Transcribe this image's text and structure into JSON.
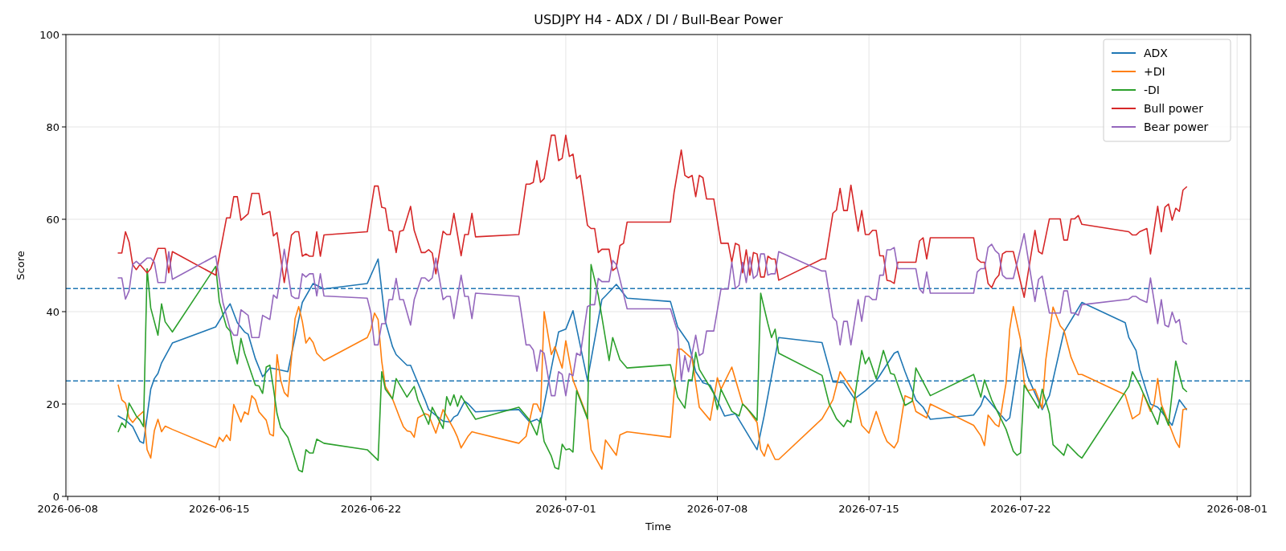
{
  "chart_data": {
    "type": "line",
    "title": "USDJPY H4 - ADX / DI / Bull-Bear Power",
    "xlabel": "Time",
    "ylabel": "Score",
    "xlim": [
      "2026-06-07T22:00",
      "2026-08-01T15:00"
    ],
    "ylim": [
      0,
      100
    ],
    "xticks": [
      "2026-06-08",
      "2026-06-15",
      "2026-06-22",
      "2026-07-01",
      "2026-07-08",
      "2026-07-15",
      "2026-07-22",
      "2026-08-01"
    ],
    "yticks": [
      0,
      20,
      40,
      60,
      80,
      100
    ],
    "grid": true,
    "legend": "top right",
    "line_style": "solid",
    "marker": "none",
    "ref_lines": [
      {
        "axis": "y",
        "value": 45,
        "color": "#1f77b4",
        "line_style": "dashed"
      },
      {
        "axis": "y",
        "value": 25,
        "color": "#1f77b4",
        "line_style": "dashed"
      }
    ],
    "series": [
      {
        "name": "ADX",
        "color": "#1f77b4",
        "x": [
          "2026-06-10T08:00",
          "2026-06-10T16:00",
          "2026-06-11T00:00",
          "2026-06-11T08:00",
          "2026-06-11T12:00",
          "2026-06-11T20:00",
          "2026-06-12T00:00",
          "2026-06-12T04:00",
          "2026-06-12T08:00",
          "2026-06-12T20:00",
          "2026-06-14T20:00",
          "2026-06-15T08:00",
          "2026-06-15T12:00",
          "2026-06-15T20:00",
          "2026-06-16T04:00",
          "2026-06-16T08:00",
          "2026-06-16T16:00",
          "2026-06-17T00:00",
          "2026-06-17T08:00",
          "2026-06-17T12:00",
          "2026-06-18T04:00",
          "2026-06-18T20:00",
          "2026-06-19T08:00",
          "2026-06-19T20:00",
          "2026-06-21T20:00",
          "2026-06-22T08:00",
          "2026-06-22T16:00",
          "2026-06-23T00:00",
          "2026-06-23T04:00",
          "2026-06-23T16:00",
          "2026-06-23T20:00",
          "2026-06-24T04:00",
          "2026-06-24T12:00",
          "2026-06-24T16:00",
          "2026-06-25T08:00",
          "2026-06-25T16:00",
          "2026-06-25T20:00",
          "2026-06-26T00:00",
          "2026-06-26T08:00",
          "2026-06-26T12:00",
          "2026-06-26T20:00",
          "2026-06-28T20:00",
          "2026-06-29T08:00",
          "2026-06-29T16:00",
          "2026-06-29T20:00",
          "2026-06-30T16:00",
          "2026-07-01T00:00",
          "2026-07-01T08:00",
          "2026-07-02T00:00",
          "2026-07-02T16:00",
          "2026-07-02T20:00",
          "2026-07-03T08:00",
          "2026-07-03T20:00",
          "2026-07-05T20:00",
          "2026-07-06T04:00",
          "2026-07-06T16:00",
          "2026-07-07T00:00",
          "2026-07-07T08:00",
          "2026-07-07T16:00",
          "2026-07-08T08:00",
          "2026-07-08T20:00",
          "2026-07-09T20:00",
          "2026-07-10T04:00",
          "2026-07-10T20:00",
          "2026-07-12T20:00",
          "2026-07-13T08:00",
          "2026-07-13T20:00",
          "2026-07-14T08:00",
          "2026-07-14T20:00",
          "2026-07-15T08:00",
          "2026-07-16T04:00",
          "2026-07-16T08:00",
          "2026-07-16T16:00",
          "2026-07-17T04:00",
          "2026-07-17T12:00",
          "2026-07-17T20:00",
          "2026-07-19T20:00",
          "2026-07-20T04:00",
          "2026-07-20T08:00",
          "2026-07-21T08:00",
          "2026-07-21T12:00",
          "2026-07-22T00:00",
          "2026-07-22T08:00",
          "2026-07-23T00:00",
          "2026-07-23T08:00",
          "2026-07-24T00:00",
          "2026-07-24T20:00",
          "2026-07-26T20:00",
          "2026-07-27T00:00",
          "2026-07-27T08:00",
          "2026-07-27T12:00",
          "2026-07-28T00:00",
          "2026-07-28T08:00",
          "2026-07-28T12:00",
          "2026-07-29T00:00",
          "2026-07-29T08:00",
          "2026-07-29T16:00"
        ],
        "values": [
          17.4,
          16.5,
          15.1,
          11.9,
          11.5,
          23.2,
          25.5,
          26.6,
          28.9,
          33.2,
          36.7,
          40.6,
          41.7,
          37.6,
          35.6,
          35.1,
          29.8,
          25.9,
          27.8,
          27.7,
          27,
          42,
          46.1,
          44.9,
          46.1,
          51.4,
          37.9,
          32.4,
          30.7,
          28.4,
          28.4,
          24.6,
          20.9,
          18.8,
          16.3,
          16.1,
          17.2,
          17.6,
          20.6,
          20,
          18.3,
          18.8,
          16.1,
          16.7,
          16,
          35.6,
          36.2,
          40.2,
          25.2,
          42.6,
          43.4,
          45.9,
          42.9,
          42.2,
          36.7,
          33.3,
          27,
          24.6,
          24.1,
          17.4,
          17.9,
          10.1,
          17.6,
          34.4,
          33.3,
          24.8,
          24.6,
          21.1,
          22.9,
          25,
          31,
          31.4,
          27,
          20.9,
          19.3,
          16.7,
          17.6,
          19.7,
          21.8,
          16.3,
          17,
          32.3,
          25.9,
          18.8,
          21.8,
          35.6,
          42,
          37.6,
          34.4,
          31.6,
          27.5,
          20,
          19.3,
          18.4,
          15.4,
          20.9,
          18.8
        ]
      },
      {
        "name": "+DI",
        "color": "#ff7f0e",
        "x": [
          "2026-06-10T08:00",
          "2026-06-10T12:00",
          "2026-06-10T16:00",
          "2026-06-10T20:00",
          "2026-06-11T00:00",
          "2026-06-11T04:00",
          "2026-06-11T08:00",
          "2026-06-11T12:00",
          "2026-06-11T16:00",
          "2026-06-11T20:00",
          "2026-06-12T00:00",
          "2026-06-12T04:00",
          "2026-06-12T08:00",
          "2026-06-12T12:00",
          "2026-06-12T20:00",
          "2026-06-14T20:00",
          "2026-06-15T00:00",
          "2026-06-15T04:00",
          "2026-06-15T08:00",
          "2026-06-15T12:00",
          "2026-06-15T16:00",
          "2026-06-16T00:00",
          "2026-06-16T04:00",
          "2026-06-16T08:00",
          "2026-06-16T12:00",
          "2026-06-16T16:00",
          "2026-06-16T20:00",
          "2026-06-17T04:00",
          "2026-06-17T08:00",
          "2026-06-17T12:00",
          "2026-06-17T16:00",
          "2026-06-17T20:00",
          "2026-06-18T00:00",
          "2026-06-18T04:00",
          "2026-06-18T12:00",
          "2026-06-18T16:00",
          "2026-06-18T20:00",
          "2026-06-19T00:00",
          "2026-06-19T04:00",
          "2026-06-19T08:00",
          "2026-06-19T12:00",
          "2026-06-19T20:00",
          "2026-06-21T20:00",
          "2026-06-22T00:00",
          "2026-06-22T04:00",
          "2026-06-22T08:00",
          "2026-06-22T12:00",
          "2026-06-22T16:00",
          "2026-06-23T00:00",
          "2026-06-23T08:00",
          "2026-06-23T12:00",
          "2026-06-23T16:00",
          "2026-06-23T20:00",
          "2026-06-24T00:00",
          "2026-06-24T04:00",
          "2026-06-24T12:00",
          "2026-06-24T16:00",
          "2026-06-25T00:00",
          "2026-06-25T08:00",
          "2026-06-25T20:00",
          "2026-06-26T00:00",
          "2026-06-26T04:00",
          "2026-06-26T12:00",
          "2026-06-26T16:00",
          "2026-06-26T20:00",
          "2026-06-28T20:00",
          "2026-06-29T04:00",
          "2026-06-29T12:00",
          "2026-06-29T16:00",
          "2026-06-29T20:00",
          "2026-06-30T00:00",
          "2026-06-30T08:00",
          "2026-06-30T12:00",
          "2026-06-30T20:00",
          "2026-07-01T00:00",
          "2026-07-01T08:00",
          "2026-07-02T00:00",
          "2026-07-02T04:00",
          "2026-07-02T16:00",
          "2026-07-02T20:00",
          "2026-07-03T08:00",
          "2026-07-03T12:00",
          "2026-07-03T20:00",
          "2026-07-05T20:00",
          "2026-07-06T04:00",
          "2026-07-06T08:00",
          "2026-07-06T20:00",
          "2026-07-07T04:00",
          "2026-07-07T16:00",
          "2026-07-08T00:00",
          "2026-07-08T04:00",
          "2026-07-08T16:00",
          "2026-07-09T04:00",
          "2026-07-09T08:00",
          "2026-07-09T20:00",
          "2026-07-10T00:00",
          "2026-07-10T04:00",
          "2026-07-10T08:00",
          "2026-07-10T16:00",
          "2026-07-10T20:00",
          "2026-07-12T20:00",
          "2026-07-13T08:00",
          "2026-07-13T16:00",
          "2026-07-14T08:00",
          "2026-07-14T16:00",
          "2026-07-15T00:00",
          "2026-07-15T08:00",
          "2026-07-15T16:00",
          "2026-07-15T20:00",
          "2026-07-16T04:00",
          "2026-07-16T08:00",
          "2026-07-16T16:00",
          "2026-07-17T00:00",
          "2026-07-17T04:00",
          "2026-07-17T16:00",
          "2026-07-17T20:00",
          "2026-07-19T20:00",
          "2026-07-20T04:00",
          "2026-07-20T08:00",
          "2026-07-20T12:00",
          "2026-07-20T20:00",
          "2026-07-21T00:00",
          "2026-07-21T08:00",
          "2026-07-21T12:00",
          "2026-07-21T16:00",
          "2026-07-22T00:00",
          "2026-07-22T04:00",
          "2026-07-22T08:00",
          "2026-07-22T16:00",
          "2026-07-23T00:00",
          "2026-07-23T04:00",
          "2026-07-23T12:00",
          "2026-07-23T20:00",
          "2026-07-24T00:00",
          "2026-07-24T08:00",
          "2026-07-24T16:00",
          "2026-07-24T20:00",
          "2026-07-26T20:00",
          "2026-07-27T04:00",
          "2026-07-27T12:00",
          "2026-07-27T16:00",
          "2026-07-28T00:00",
          "2026-07-28T04:00",
          "2026-07-28T08:00",
          "2026-07-28T12:00",
          "2026-07-29T04:00",
          "2026-07-29T08:00",
          "2026-07-29T12:00",
          "2026-07-29T16:00"
        ],
        "values": [
          24.1,
          20.9,
          20.2,
          17,
          16,
          17,
          17.7,
          18.4,
          10.1,
          8.3,
          14.2,
          16.7,
          14,
          15.2,
          14.5,
          10.6,
          12.8,
          11.9,
          13.3,
          12.1,
          19.9,
          16.1,
          18.3,
          17.7,
          21.8,
          20.9,
          18.3,
          16.5,
          13.5,
          13.1,
          30.7,
          25.2,
          22.5,
          21.6,
          38.5,
          41.1,
          37.9,
          33.2,
          34.4,
          33.3,
          31,
          29.4,
          34.4,
          36.2,
          39.7,
          38.3,
          29.3,
          23.8,
          21.1,
          17,
          15.1,
          14.2,
          14,
          12.8,
          17,
          17.9,
          17.6,
          13.7,
          18.8,
          14.5,
          12.8,
          10.5,
          13.1,
          14,
          13.8,
          11.5,
          13,
          20,
          20,
          18.3,
          40,
          30.7,
          32.4,
          27.8,
          33.7,
          25.2,
          17.2,
          10.1,
          5.9,
          12.2,
          8.9,
          13.3,
          14,
          12.8,
          31.9,
          31.9,
          29.8,
          19.3,
          16.5,
          25.7,
          23.2,
          28,
          20,
          19.3,
          16,
          10.1,
          8.7,
          11.3,
          8,
          8,
          16.8,
          20.9,
          27,
          22.3,
          15.4,
          13.7,
          18.4,
          13.7,
          11.9,
          10.5,
          11.9,
          21.8,
          21.1,
          18.4,
          17,
          20,
          15.4,
          13.1,
          11,
          17.6,
          15.6,
          15.1,
          24.6,
          36.2,
          41.1,
          33.9,
          24.6,
          22.9,
          23.2,
          19.1,
          29.6,
          41,
          36.9,
          36,
          30.1,
          26.4,
          26.4,
          22,
          16.8,
          17.9,
          22.3,
          18.4,
          20,
          25.5,
          20,
          11.9,
          10.6,
          18.8,
          19
        ]
      },
      {
        "name": "-DI",
        "color": "#2ca02c",
        "x": [
          "2026-06-10T08:00",
          "2026-06-10T12:00",
          "2026-06-10T16:00",
          "2026-06-10T20:00",
          "2026-06-11T04:00",
          "2026-06-11T08:00",
          "2026-06-11T12:00",
          "2026-06-11T16:00",
          "2026-06-11T20:00",
          "2026-06-12T04:00",
          "2026-06-12T08:00",
          "2026-06-12T12:00",
          "2026-06-12T20:00",
          "2026-06-14T20:00",
          "2026-06-15T00:00",
          "2026-06-15T08:00",
          "2026-06-15T12:00",
          "2026-06-15T16:00",
          "2026-06-15T20:00",
          "2026-06-16T00:00",
          "2026-06-16T04:00",
          "2026-06-16T16:00",
          "2026-06-16T20:00",
          "2026-06-17T00:00",
          "2026-06-17T04:00",
          "2026-06-17T08:00",
          "2026-06-17T12:00",
          "2026-06-17T16:00",
          "2026-06-17T20:00",
          "2026-06-18T04:00",
          "2026-06-18T16:00",
          "2026-06-18T20:00",
          "2026-06-19T00:00",
          "2026-06-19T04:00",
          "2026-06-19T08:00",
          "2026-06-19T12:00",
          "2026-06-19T20:00",
          "2026-06-21T20:00",
          "2026-06-22T08:00",
          "2026-06-22T12:00",
          "2026-06-22T16:00",
          "2026-06-23T00:00",
          "2026-06-23T04:00",
          "2026-06-23T16:00",
          "2026-06-24T00:00",
          "2026-06-24T04:00",
          "2026-06-24T16:00",
          "2026-06-24T20:00",
          "2026-06-25T08:00",
          "2026-06-25T12:00",
          "2026-06-25T16:00",
          "2026-06-25T20:00",
          "2026-06-26T00:00",
          "2026-06-26T04:00",
          "2026-06-26T12:00",
          "2026-06-26T20:00",
          "2026-06-28T20:00",
          "2026-06-29T08:00",
          "2026-06-29T16:00",
          "2026-06-29T20:00",
          "2026-06-30T00:00",
          "2026-06-30T08:00",
          "2026-06-30T12:00",
          "2026-06-30T16:00",
          "2026-06-30T20:00",
          "2026-07-01T00:00",
          "2026-07-01T04:00",
          "2026-07-01T08:00",
          "2026-07-01T12:00",
          "2026-07-02T00:00",
          "2026-07-02T04:00",
          "2026-07-02T12:00",
          "2026-07-03T00:00",
          "2026-07-03T04:00",
          "2026-07-03T12:00",
          "2026-07-03T20:00",
          "2026-07-05T20:00",
          "2026-07-06T04:00",
          "2026-07-06T12:00",
          "2026-07-06T16:00",
          "2026-07-06T20:00",
          "2026-07-07T00:00",
          "2026-07-07T04:00",
          "2026-07-07T20:00",
          "2026-07-08T00:00",
          "2026-07-08T04:00",
          "2026-07-08T16:00",
          "2026-07-09T00:00",
          "2026-07-09T04:00",
          "2026-07-09T12:00",
          "2026-07-09T20:00",
          "2026-07-10T00:00",
          "2026-07-10T08:00",
          "2026-07-10T12:00",
          "2026-07-10T16:00",
          "2026-07-10T20:00",
          "2026-07-12T20:00",
          "2026-07-13T04:00",
          "2026-07-13T12:00",
          "2026-07-13T20:00",
          "2026-07-14T00:00",
          "2026-07-14T04:00",
          "2026-07-14T16:00",
          "2026-07-14T20:00",
          "2026-07-15T00:00",
          "2026-07-15T08:00",
          "2026-07-15T16:00",
          "2026-07-16T00:00",
          "2026-07-16T04:00",
          "2026-07-16T16:00",
          "2026-07-17T00:00",
          "2026-07-17T04:00",
          "2026-07-17T20:00",
          "2026-07-19T20:00",
          "2026-07-20T04:00",
          "2026-07-20T08:00",
          "2026-07-20T16:00",
          "2026-07-21T08:00",
          "2026-07-21T16:00",
          "2026-07-21T20:00",
          "2026-07-22T00:00",
          "2026-07-22T04:00",
          "2026-07-22T20:00",
          "2026-07-23T00:00",
          "2026-07-23T08:00",
          "2026-07-23T12:00",
          "2026-07-24T00:00",
          "2026-07-24T04:00",
          "2026-07-24T16:00",
          "2026-07-24T20:00",
          "2026-07-27T00:00",
          "2026-07-27T04:00",
          "2026-07-27T12:00",
          "2026-07-27T16:00",
          "2026-07-28T08:00",
          "2026-07-28T12:00",
          "2026-07-28T20:00",
          "2026-07-29T04:00",
          "2026-07-29T12:00",
          "2026-07-29T16:00"
        ],
        "values": [
          14,
          15.9,
          14.9,
          20.2,
          17.4,
          16.5,
          15.1,
          49.3,
          40.8,
          34.9,
          41.7,
          37.8,
          35.6,
          49.8,
          42.2,
          36.7,
          35.8,
          31.6,
          28.7,
          34.2,
          31,
          24.1,
          23.9,
          22.3,
          28,
          28.4,
          23.4,
          17.9,
          14.9,
          12.8,
          5.7,
          5.3,
          10.1,
          9.4,
          9.4,
          12.4,
          11.5,
          10.1,
          7.8,
          27,
          23.2,
          21.1,
          25.5,
          21.5,
          23.8,
          20.9,
          15.6,
          19.3,
          14.7,
          21.6,
          19.7,
          22,
          19.5,
          21.8,
          19.1,
          16.7,
          19.3,
          16.5,
          13.3,
          17,
          11.9,
          8.7,
          6.2,
          5.9,
          11.3,
          10.1,
          10.3,
          9.6,
          22.9,
          16.8,
          50.2,
          43.6,
          29.4,
          34.4,
          29.6,
          27.8,
          28.5,
          21.5,
          19.1,
          25.2,
          25.2,
          31.2,
          27.5,
          22.3,
          18.8,
          23.2,
          18.4,
          17.4,
          20,
          18.4,
          16.5,
          44,
          37.4,
          34.4,
          36.2,
          31,
          26.2,
          20,
          16.8,
          15.1,
          16.5,
          16,
          31.6,
          28.7,
          30.1,
          25.5,
          31.6,
          26.6,
          26.4,
          19.7,
          20.6,
          27.8,
          21.8,
          26.4,
          21.5,
          25.2,
          20.9,
          14.5,
          9.8,
          8.9,
          9.4,
          24.1,
          19.1,
          23.2,
          17.9,
          11.2,
          8.9,
          11.3,
          8.9,
          8.3,
          23.8,
          27,
          24.1,
          22.3,
          15.6,
          19.3,
          15.4,
          29.3,
          23.4,
          22.7
        ]
      },
      {
        "name": "Bull power",
        "color": "#d62728",
        "x": [
          "2026-06-10T08:00",
          "2026-06-10T12:00",
          "2026-06-10T16:00",
          "2026-06-10T20:00",
          "2026-06-11T00:00",
          "2026-06-11T04:00",
          "2026-06-11T08:00",
          "2026-06-11T16:00",
          "2026-06-11T20:00",
          "2026-06-12T04:00",
          "2026-06-12T12:00",
          "2026-06-12T16:00",
          "2026-06-12T20:00",
          "2026-06-14T20:00",
          "2026-06-15T08:00",
          "2026-06-15T12:00",
          "2026-06-15T16:00",
          "2026-06-15T20:00",
          "2026-06-16T00:00",
          "2026-06-16T08:00",
          "2026-06-16T12:00",
          "2026-06-16T20:00",
          "2026-06-17T00:00",
          "2026-06-17T08:00",
          "2026-06-17T12:00",
          "2026-06-17T16:00",
          "2026-06-18T00:00",
          "2026-06-18T08:00",
          "2026-06-18T12:00",
          "2026-06-18T16:00",
          "2026-06-18T20:00",
          "2026-06-19T00:00",
          "2026-06-19T04:00",
          "2026-06-19T08:00",
          "2026-06-19T12:00",
          "2026-06-19T16:00",
          "2026-06-19T20:00",
          "2026-06-21T20:00",
          "2026-06-22T04:00",
          "2026-06-22T08:00",
          "2026-06-22T12:00",
          "2026-06-22T16:00",
          "2026-06-22T20:00",
          "2026-06-23T00:00",
          "2026-06-23T04:00",
          "2026-06-23T08:00",
          "2026-06-23T12:00",
          "2026-06-23T20:00",
          "2026-06-24T00:00",
          "2026-06-24T08:00",
          "2026-06-24T12:00",
          "2026-06-24T16:00",
          "2026-06-24T20:00",
          "2026-06-25T00:00",
          "2026-06-25T08:00",
          "2026-06-25T12:00",
          "2026-06-25T16:00",
          "2026-06-25T20:00",
          "2026-06-26T04:00",
          "2026-06-26T08:00",
          "2026-06-26T12:00",
          "2026-06-26T16:00",
          "2026-06-26T20:00",
          "2026-06-28T20:00",
          "2026-06-29T04:00",
          "2026-06-29T08:00",
          "2026-06-29T12:00",
          "2026-06-29T16:00",
          "2026-06-29T20:00",
          "2026-06-30T00:00",
          "2026-06-30T08:00",
          "2026-06-30T12:00",
          "2026-06-30T16:00",
          "2026-06-30T20:00",
          "2026-07-01T00:00",
          "2026-07-01T04:00",
          "2026-07-01T08:00",
          "2026-07-01T12:00",
          "2026-07-01T16:00",
          "2026-07-02T00:00",
          "2026-07-02T04:00",
          "2026-07-02T08:00",
          "2026-07-02T12:00",
          "2026-07-02T16:00",
          "2026-07-03T00:00",
          "2026-07-03T04:00",
          "2026-07-03T08:00",
          "2026-07-03T12:00",
          "2026-07-03T16:00",
          "2026-07-03T20:00",
          "2026-07-05T20:00",
          "2026-07-06T00:00",
          "2026-07-06T08:00",
          "2026-07-06T12:00",
          "2026-07-06T16:00",
          "2026-07-06T20:00",
          "2026-07-07T00:00",
          "2026-07-07T04:00",
          "2026-07-07T08:00",
          "2026-07-07T12:00",
          "2026-07-07T20:00",
          "2026-07-08T04:00",
          "2026-07-08T12:00",
          "2026-07-08T16:00",
          "2026-07-08T20:00",
          "2026-07-09T00:00",
          "2026-07-09T04:00",
          "2026-07-09T08:00",
          "2026-07-09T12:00",
          "2026-07-09T16:00",
          "2026-07-09T20:00",
          "2026-07-10T00:00",
          "2026-07-10T04:00",
          "2026-07-10T08:00",
          "2026-07-10T12:00",
          "2026-07-10T16:00",
          "2026-07-10T20:00",
          "2026-07-12T20:00",
          "2026-07-13T00:00",
          "2026-07-13T08:00",
          "2026-07-13T12:00",
          "2026-07-13T16:00",
          "2026-07-13T20:00",
          "2026-07-14T00:00",
          "2026-07-14T04:00",
          "2026-07-14T12:00",
          "2026-07-14T16:00",
          "2026-07-14T20:00",
          "2026-07-15T00:00",
          "2026-07-15T04:00",
          "2026-07-15T08:00",
          "2026-07-15T12:00",
          "2026-07-15T16:00",
          "2026-07-15T20:00",
          "2026-07-16T00:00",
          "2026-07-16T04:00",
          "2026-07-16T08:00",
          "2026-07-17T04:00",
          "2026-07-17T08:00",
          "2026-07-17T12:00",
          "2026-07-17T16:00",
          "2026-07-17T20:00",
          "2026-07-19T20:00",
          "2026-07-20T00:00",
          "2026-07-20T04:00",
          "2026-07-20T08:00",
          "2026-07-20T12:00",
          "2026-07-20T16:00",
          "2026-07-20T20:00",
          "2026-07-21T00:00",
          "2026-07-21T04:00",
          "2026-07-21T08:00",
          "2026-07-21T16:00",
          "2026-07-22T04:00",
          "2026-07-22T16:00",
          "2026-07-22T20:00",
          "2026-07-23T00:00",
          "2026-07-23T08:00",
          "2026-07-23T20:00",
          "2026-07-24T00:00",
          "2026-07-24T04:00",
          "2026-07-24T08:00",
          "2026-07-24T12:00",
          "2026-07-24T16:00",
          "2026-07-24T20:00",
          "2026-07-27T00:00",
          "2026-07-27T04:00",
          "2026-07-27T08:00",
          "2026-07-27T12:00",
          "2026-07-27T20:00",
          "2026-07-28T00:00",
          "2026-07-28T08:00",
          "2026-07-28T12:00",
          "2026-07-28T16:00",
          "2026-07-28T20:00",
          "2026-07-29T00:00",
          "2026-07-29T04:00",
          "2026-07-29T08:00",
          "2026-07-29T12:00",
          "2026-07-29T16:00"
        ],
        "values": [
          52.7,
          52.7,
          57.3,
          55.1,
          50.2,
          49.1,
          50.2,
          48.4,
          49.3,
          53.7,
          53.7,
          48.4,
          53,
          47.9,
          60.3,
          60.3,
          64.9,
          64.9,
          59.8,
          61.2,
          65.6,
          65.6,
          61,
          61.7,
          56.4,
          57.1,
          46.3,
          56.6,
          57.3,
          57.3,
          52,
          52.5,
          52,
          52,
          57.3,
          52,
          56.6,
          57.3,
          67.2,
          67.2,
          62.6,
          62.4,
          57.6,
          57.4,
          52.8,
          57.4,
          57.6,
          62.8,
          57.6,
          52.8,
          52.8,
          53.4,
          52.7,
          48.2,
          57.4,
          56.7,
          56.7,
          61.3,
          52.1,
          56.7,
          56.7,
          61.3,
          56.2,
          56.7,
          67.6,
          67.6,
          68,
          72.7,
          68,
          68.8,
          78.2,
          78.2,
          72.7,
          73.2,
          78.2,
          73.6,
          74.1,
          68.8,
          69.5,
          58.7,
          58,
          58,
          52.8,
          53.5,
          53.5,
          48.9,
          49.5,
          54.3,
          54.8,
          59.4,
          59.4,
          65.8,
          75,
          69.5,
          69,
          69.5,
          64.9,
          69.5,
          69,
          64.4,
          64.4,
          54.8,
          54.8,
          50.7,
          54.8,
          54.4,
          48.4,
          53.4,
          47.9,
          52.8,
          52.5,
          47.5,
          47.5,
          52,
          51.4,
          51.4,
          46.8,
          51.4,
          51.4,
          61.3,
          62,
          66.7,
          61.9,
          61.9,
          67.4,
          57.4,
          61.9,
          56.7,
          56.7,
          57.6,
          57.6,
          52.1,
          52.1,
          46.8,
          46.6,
          46.1,
          50.7,
          50.7,
          55.3,
          56,
          51.4,
          56,
          56,
          51.4,
          50.7,
          50.7,
          46.1,
          45.2,
          47,
          47.9,
          52.5,
          53,
          53,
          43.1,
          57.6,
          53,
          52.5,
          60.1,
          60.1,
          55.5,
          55.5,
          60.1,
          60.1,
          60.8,
          58.9,
          57.3,
          56.6,
          56.6,
          57.3,
          58,
          52.5,
          62.8,
          57.3,
          62.6,
          63.3,
          59.8,
          62.4,
          61.7,
          66.3,
          67
        ]
      },
      {
        "name": "Bear power",
        "color": "#9467bd",
        "x": [
          "2026-06-10T08:00",
          "2026-06-10T12:00",
          "2026-06-10T16:00",
          "2026-06-10T20:00",
          "2026-06-11T00:00",
          "2026-06-11T04:00",
          "2026-06-11T08:00",
          "2026-06-11T16:00",
          "2026-06-11T20:00",
          "2026-06-12T00:00",
          "2026-06-12T04:00",
          "2026-06-12T12:00",
          "2026-06-12T16:00",
          "2026-06-12T20:00",
          "2026-06-14T20:00",
          "2026-06-15T04:00",
          "2026-06-15T12:00",
          "2026-06-15T16:00",
          "2026-06-15T20:00",
          "2026-06-16T00:00",
          "2026-06-16T08:00",
          "2026-06-16T12:00",
          "2026-06-16T20:00",
          "2026-06-17T00:00",
          "2026-06-17T08:00",
          "2026-06-17T12:00",
          "2026-06-17T16:00",
          "2026-06-18T00:00",
          "2026-06-18T08:00",
          "2026-06-18T12:00",
          "2026-06-18T16:00",
          "2026-06-18T20:00",
          "2026-06-19T00:00",
          "2026-06-19T04:00",
          "2026-06-19T08:00",
          "2026-06-19T12:00",
          "2026-06-19T16:00",
          "2026-06-19T20:00",
          "2026-06-21T20:00",
          "2026-06-22T00:00",
          "2026-06-22T04:00",
          "2026-06-22T08:00",
          "2026-06-22T12:00",
          "2026-06-22T16:00",
          "2026-06-22T20:00",
          "2026-06-23T00:00",
          "2026-06-23T04:00",
          "2026-06-23T08:00",
          "2026-06-23T12:00",
          "2026-06-23T20:00",
          "2026-06-24T00:00",
          "2026-06-24T08:00",
          "2026-06-24T12:00",
          "2026-06-24T16:00",
          "2026-06-24T20:00",
          "2026-06-25T00:00",
          "2026-06-25T08:00",
          "2026-06-25T12:00",
          "2026-06-25T16:00",
          "2026-06-25T20:00",
          "2026-06-26T04:00",
          "2026-06-26T08:00",
          "2026-06-26T12:00",
          "2026-06-26T16:00",
          "2026-06-26T20:00",
          "2026-06-28T20:00",
          "2026-06-29T04:00",
          "2026-06-29T08:00",
          "2026-06-29T12:00",
          "2026-06-29T16:00",
          "2026-06-29T20:00",
          "2026-06-30T00:00",
          "2026-06-30T08:00",
          "2026-06-30T12:00",
          "2026-06-30T16:00",
          "2026-06-30T20:00",
          "2026-07-01T00:00",
          "2026-07-01T04:00",
          "2026-07-01T08:00",
          "2026-07-01T12:00",
          "2026-07-01T16:00",
          "2026-07-02T00:00",
          "2026-07-02T04:00",
          "2026-07-02T08:00",
          "2026-07-02T12:00",
          "2026-07-02T16:00",
          "2026-07-03T00:00",
          "2026-07-03T04:00",
          "2026-07-03T08:00",
          "2026-07-03T16:00",
          "2026-07-03T20:00",
          "2026-07-05T20:00",
          "2026-07-06T04:00",
          "2026-07-06T08:00",
          "2026-07-06T12:00",
          "2026-07-06T16:00",
          "2026-07-07T00:00",
          "2026-07-07T04:00",
          "2026-07-07T08:00",
          "2026-07-07T12:00",
          "2026-07-07T20:00",
          "2026-07-08T04:00",
          "2026-07-08T12:00",
          "2026-07-08T16:00",
          "2026-07-08T20:00",
          "2026-07-09T00:00",
          "2026-07-09T04:00",
          "2026-07-09T08:00",
          "2026-07-09T12:00",
          "2026-07-09T16:00",
          "2026-07-09T20:00",
          "2026-07-10T00:00",
          "2026-07-10T04:00",
          "2026-07-10T08:00",
          "2026-07-10T12:00",
          "2026-07-10T16:00",
          "2026-07-10T20:00",
          "2026-07-12T20:00",
          "2026-07-13T00:00",
          "2026-07-13T08:00",
          "2026-07-13T12:00",
          "2026-07-13T16:00",
          "2026-07-13T20:00",
          "2026-07-14T00:00",
          "2026-07-14T04:00",
          "2026-07-14T12:00",
          "2026-07-14T16:00",
          "2026-07-14T20:00",
          "2026-07-15T00:00",
          "2026-07-15T04:00",
          "2026-07-15T08:00",
          "2026-07-15T12:00",
          "2026-07-15T16:00",
          "2026-07-15T20:00",
          "2026-07-16T00:00",
          "2026-07-16T04:00",
          "2026-07-16T08:00",
          "2026-07-17T04:00",
          "2026-07-17T08:00",
          "2026-07-17T12:00",
          "2026-07-17T16:00",
          "2026-07-17T20:00",
          "2026-07-19T20:00",
          "2026-07-20T00:00",
          "2026-07-20T04:00",
          "2026-07-20T08:00",
          "2026-07-20T12:00",
          "2026-07-20T16:00",
          "2026-07-20T20:00",
          "2026-07-21T00:00",
          "2026-07-21T04:00",
          "2026-07-21T08:00",
          "2026-07-21T16:00",
          "2026-07-22T04:00",
          "2026-07-22T16:00",
          "2026-07-22T20:00",
          "2026-07-23T00:00",
          "2026-07-23T08:00",
          "2026-07-23T20:00",
          "2026-07-24T00:00",
          "2026-07-24T04:00",
          "2026-07-24T08:00",
          "2026-07-24T12:00",
          "2026-07-24T16:00",
          "2026-07-24T20:00",
          "2026-07-27T00:00",
          "2026-07-27T04:00",
          "2026-07-27T08:00",
          "2026-07-27T12:00",
          "2026-07-27T20:00",
          "2026-07-28T00:00",
          "2026-07-28T08:00",
          "2026-07-28T12:00",
          "2026-07-28T16:00",
          "2026-07-28T20:00",
          "2026-07-29T00:00",
          "2026-07-29T04:00",
          "2026-07-29T08:00",
          "2026-07-29T12:00",
          "2026-07-29T16:00"
        ],
        "values": [
          47.3,
          47.3,
          42.7,
          44.5,
          50.2,
          50.9,
          50.2,
          51.6,
          51.6,
          50.7,
          46.3,
          46.3,
          53,
          47,
          52.1,
          42,
          36.2,
          34.9,
          34.9,
          40.4,
          39.2,
          34.4,
          34.4,
          39.2,
          38.3,
          43.6,
          42.9,
          53.5,
          43.4,
          42.9,
          42.9,
          48.2,
          47.5,
          48.2,
          48.2,
          43.4,
          48.2,
          43.4,
          42.9,
          39.7,
          32.8,
          32.8,
          37.4,
          37.4,
          42.6,
          42.6,
          47.2,
          42.6,
          42.6,
          37.1,
          42.6,
          47.3,
          47.3,
          46.6,
          47.3,
          51.6,
          42.6,
          43.3,
          43.3,
          38.5,
          47.9,
          43.3,
          43.3,
          38.5,
          44,
          43.3,
          32.8,
          32.8,
          31.7,
          27.1,
          31.7,
          31,
          21.8,
          21.8,
          27,
          26.4,
          21.8,
          26.6,
          26.1,
          31,
          30.5,
          41.1,
          41.5,
          41.5,
          47.2,
          46.5,
          46.5,
          51.1,
          50.2,
          43.8,
          40.6,
          40.6,
          35.6,
          25.2,
          30.5,
          27,
          34.9,
          30.5,
          31,
          35.8,
          35.8,
          44.9,
          44.9,
          50.7,
          45,
          45.7,
          50.7,
          46.3,
          51.8,
          47.2,
          47.9,
          52.5,
          52.5,
          47.9,
          48.2,
          48.2,
          53,
          48.8,
          48.8,
          38.8,
          37.9,
          32.8,
          37.9,
          37.9,
          32.8,
          42.6,
          37.9,
          43.3,
          43.3,
          42.6,
          42.6,
          47.9,
          47.9,
          53.4,
          53.4,
          53.9,
          49.3,
          49.3,
          44.9,
          44,
          48.6,
          44,
          44,
          48.6,
          49.3,
          49.3,
          53.9,
          54.6,
          53.2,
          52.5,
          47.9,
          47.2,
          47.2,
          56.9,
          42.2,
          47,
          47.7,
          39.7,
          39.7,
          44.5,
          44.5,
          39.7,
          39.7,
          39.2,
          41.5,
          42.7,
          43.3,
          43.3,
          42.7,
          42,
          47.3,
          37.4,
          42.6,
          37.1,
          36.7,
          39.9,
          37.6,
          38.3,
          33.5,
          33
        ]
      }
    ]
  }
}
